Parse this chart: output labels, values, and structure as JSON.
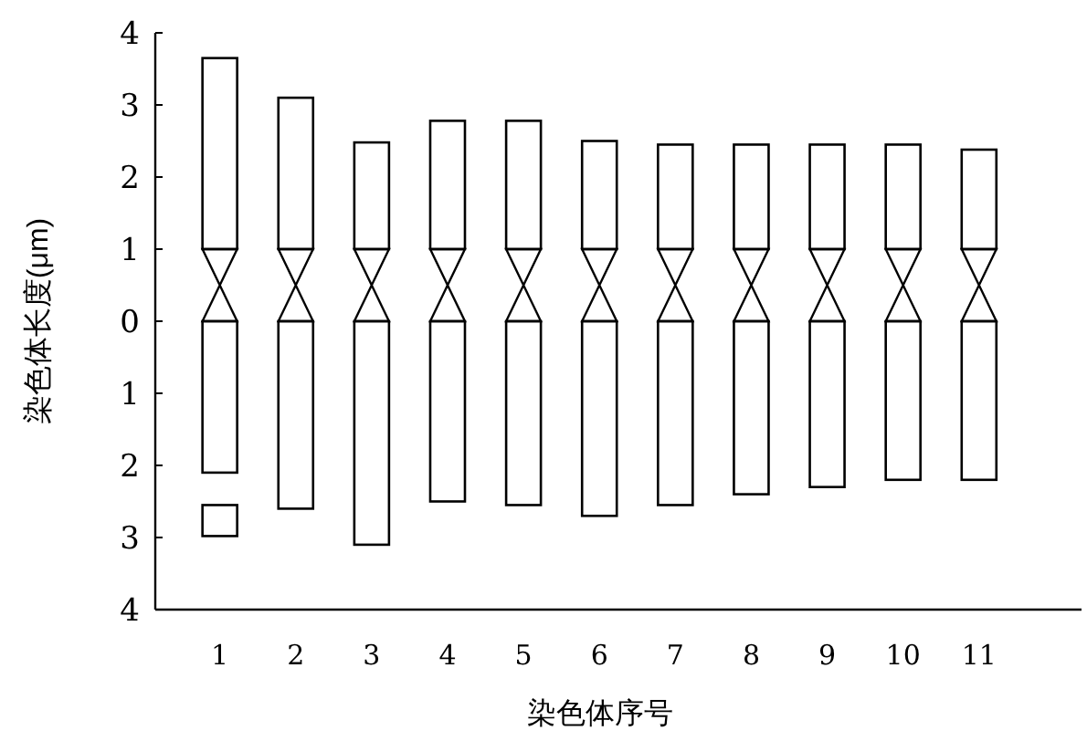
{
  "chart_data": {
    "type": "bar",
    "xlabel": "染色体序号",
    "ylabel": "染色体长度(μm)",
    "categories": [
      "1",
      "2",
      "3",
      "4",
      "5",
      "6",
      "7",
      "8",
      "9",
      "10",
      "11"
    ],
    "series": [
      {
        "color": "#ffffff",
        "base": [
          1,
          1,
          1,
          1,
          1,
          1,
          1,
          1,
          1,
          1,
          1
        ],
        "values": [
          2.65,
          2.1,
          1.48,
          1.78,
          1.78,
          1.5,
          1.45,
          1.45,
          1.45,
          1.45,
          1.38
        ]
      },
      {
        "color": "#ffffff",
        "base": [
          0,
          0,
          0,
          0,
          0,
          0,
          0,
          0,
          0,
          0,
          0
        ],
        "values": [
          -2.1,
          -2.6,
          -3.1,
          -2.5,
          -2.55,
          -2.7,
          -2.55,
          -2.4,
          -2.3,
          -2.2,
          -2.2
        ]
      },
      {
        "color": "#ffffff",
        "base": [
          -2.55,
          null,
          null,
          null,
          null,
          null,
          null,
          null,
          null,
          null,
          null
        ],
        "values": [
          -0.43,
          null,
          null,
          null,
          null,
          null,
          null,
          null,
          null,
          null,
          null
        ]
      }
    ],
    "ylim": [
      -4,
      4
    ],
    "yticks": [
      {
        "value": -4,
        "label": "4"
      },
      {
        "value": -3,
        "label": "3"
      },
      {
        "value": -2,
        "label": "2"
      },
      {
        "value": -1,
        "label": "1"
      },
      0,
      1,
      2,
      3,
      4
    ],
    "grid": false
  }
}
